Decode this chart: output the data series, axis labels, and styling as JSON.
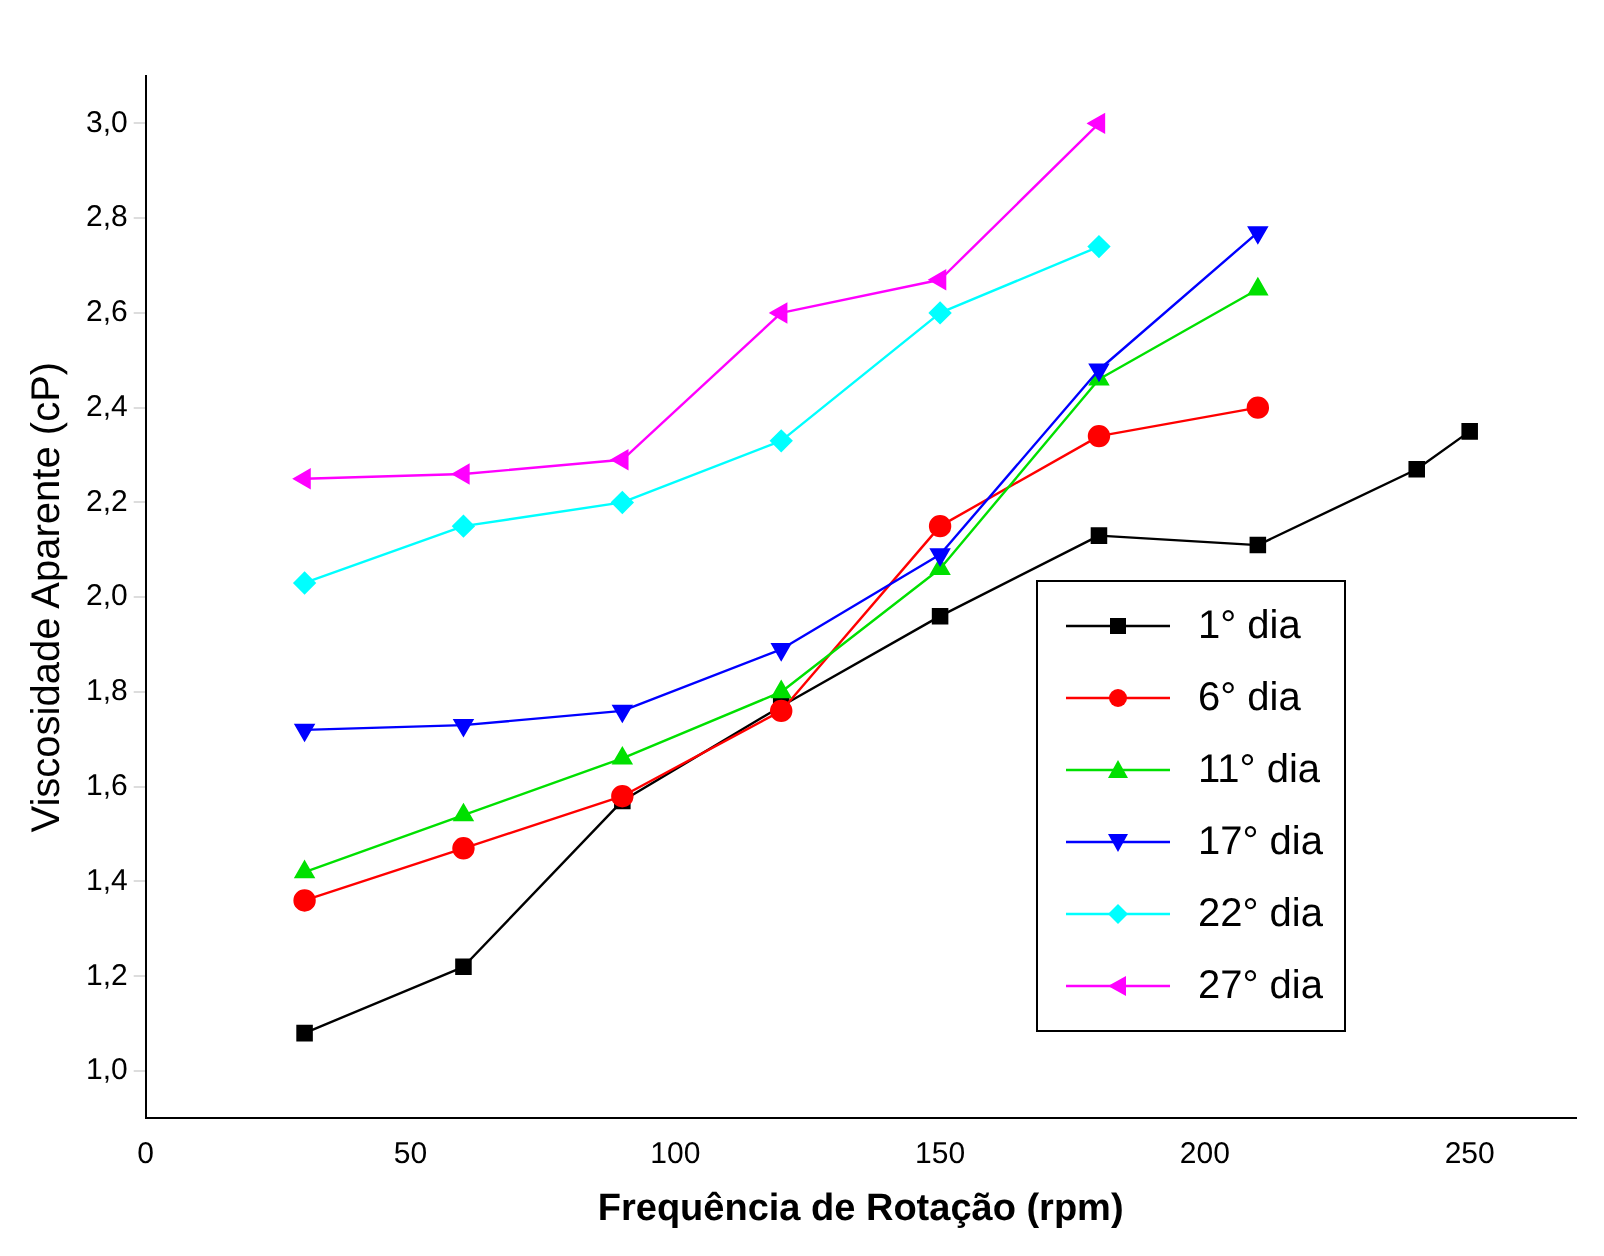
{
  "chart_data": {
    "type": "line",
    "xlabel": "Frequência de Rotação (rpm)",
    "ylabel": "Viscosidade Aparente (cP)",
    "xlim": [
      0,
      270
    ],
    "xticks": [
      0,
      50,
      100,
      150,
      200,
      250
    ],
    "ylim": [
      0.9,
      3.1
    ],
    "yticks": [
      {
        "value": 1.0,
        "label": "1,0"
      },
      {
        "value": 1.2,
        "label": "1,2"
      },
      {
        "value": 1.4,
        "label": "1,4"
      },
      {
        "value": 1.6,
        "label": "1,6"
      },
      {
        "value": 1.8,
        "label": "1,8"
      },
      {
        "value": 2.0,
        "label": "2,0"
      },
      {
        "value": 2.2,
        "label": "2,2"
      },
      {
        "value": 2.4,
        "label": "2,4"
      },
      {
        "value": 2.6,
        "label": "2,6"
      },
      {
        "value": 2.8,
        "label": "2,8"
      },
      {
        "value": 3.0,
        "label": "3,0"
      }
    ],
    "grid": false,
    "legend": "bottom right",
    "line_style": "solid",
    "series": [
      {
        "name": "1° dia",
        "color": "#000000",
        "marker": "square",
        "x": [
          30,
          60,
          90,
          120,
          150,
          180,
          210,
          240,
          250
        ],
        "values": [
          1.08,
          1.22,
          1.57,
          1.77,
          1.96,
          2.13,
          2.11,
          2.27,
          2.35
        ]
      },
      {
        "name": "6° dia",
        "color": "#ff0000",
        "marker": "circle",
        "x": [
          30,
          60,
          90,
          120,
          150,
          180,
          210
        ],
        "values": [
          1.36,
          1.47,
          1.58,
          1.76,
          2.15,
          2.34,
          2.4
        ]
      },
      {
        "name": "11° dia",
        "color": "#00e000",
        "marker": "triangle",
        "x": [
          30,
          60,
          90,
          120,
          150,
          180,
          210
        ],
        "values": [
          1.42,
          1.54,
          1.66,
          1.8,
          2.06,
          2.46,
          2.65
        ]
      },
      {
        "name": "17° dia",
        "color": "#0000ff",
        "marker": "triangle-down",
        "x": [
          30,
          60,
          90,
          120,
          150,
          180,
          210
        ],
        "values": [
          1.72,
          1.73,
          1.76,
          1.89,
          2.09,
          2.48,
          2.77
        ]
      },
      {
        "name": "22° dia",
        "color": "#00ffff",
        "marker": "diamond",
        "x": [
          30,
          60,
          90,
          120,
          150,
          180
        ],
        "values": [
          2.03,
          2.15,
          2.2,
          2.33,
          2.6,
          2.74
        ]
      },
      {
        "name": "27° dia",
        "color": "#ff00ff",
        "marker": "triangle-left",
        "x": [
          30,
          60,
          90,
          120,
          150,
          180
        ],
        "values": [
          2.25,
          2.26,
          2.29,
          2.6,
          2.67,
          3.0
        ]
      }
    ]
  }
}
